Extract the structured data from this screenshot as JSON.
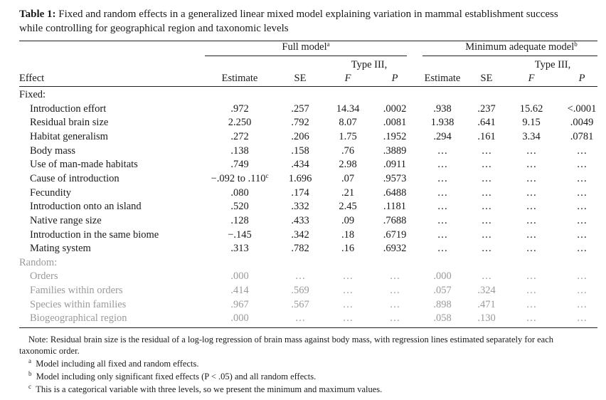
{
  "title": {
    "label": "Table 1:",
    "lines": [
      "Fixed and random effects in a generalized linear mixed model explaining variation in mammal establishment success",
      "while controlling for geographical region and taxonomic levels"
    ]
  },
  "table": {
    "groups": [
      {
        "title": "Full model",
        "note": "a"
      },
      {
        "title": "Minimum adequate model",
        "note": "b"
      }
    ],
    "columns": [
      "Effect",
      "Estimate",
      "SE",
      {
        "top": "Type III,",
        "name": "F"
      },
      "P",
      "Estimate",
      "SE",
      {
        "top": "Type III,",
        "name": "F"
      },
      "P"
    ],
    "sections": [
      {
        "label": "Fixed:",
        "rows": [
          [
            "Introduction effort",
            ".972",
            ".257",
            "14.34",
            ".0002",
            ".938",
            ".237",
            "15.62",
            "<.0001"
          ],
          [
            "Residual brain size",
            "2.250",
            ".792",
            "8.07",
            ".0081",
            "1.938",
            ".641",
            "9.15",
            ".0049"
          ],
          [
            "Habitat generalism",
            ".272",
            ".206",
            "1.75",
            ".1952",
            ".294",
            ".161",
            "3.34",
            ".0781"
          ],
          [
            "Body mass",
            ".138",
            ".158",
            ".76",
            ".3889",
            "…",
            "…",
            "…",
            "…"
          ],
          [
            "Use of man-made habitats",
            ".749",
            ".434",
            "2.98",
            ".0911",
            "…",
            "…",
            "…",
            "…"
          ],
          [
            "Cause of introduction",
            {
              "text": "−.092 to .110",
              "note": "c"
            },
            "1.696",
            ".07",
            ".9573",
            "…",
            "…",
            "…",
            "…"
          ],
          [
            "Fecundity",
            ".080",
            ".174",
            ".21",
            ".6488",
            "…",
            "…",
            "…",
            "…"
          ],
          [
            "Introduction onto an island",
            ".520",
            ".332",
            "2.45",
            ".1181",
            "…",
            "…",
            "…",
            "…"
          ],
          [
            "Native range size",
            ".128",
            ".433",
            ".09",
            ".7688",
            "…",
            "…",
            "…",
            "…"
          ],
          [
            "Introduction in the same biome",
            "−.145",
            ".342",
            ".18",
            ".6719",
            "…",
            "…",
            "…",
            "…"
          ],
          [
            "Mating system",
            ".313",
            ".782",
            ".16",
            ".6932",
            "…",
            "…",
            "…",
            "…"
          ]
        ]
      },
      {
        "label": "Random:",
        "rows": [
          [
            "Orders",
            ".000",
            "…",
            "…",
            "…",
            ".000",
            "…",
            "…",
            "…"
          ],
          [
            "Families within orders",
            ".414",
            ".569",
            "…",
            "…",
            ".057",
            ".324",
            "…",
            "…"
          ],
          [
            "Species within families",
            ".967",
            ".567",
            "…",
            "…",
            ".898",
            ".471",
            "…",
            "…"
          ],
          [
            "Biogeographical region",
            ".000",
            "…",
            "…",
            "…",
            ".058",
            ".130",
            "…",
            "…"
          ]
        ]
      }
    ]
  },
  "notes": {
    "lines": [
      "Note: Residual brain size is the residual of a log-log regression of brain mass against body mass, with regression lines estimated separately for each",
      "taxonomic order."
    ],
    "footnotes": [
      {
        "mark": "a",
        "text": "Model including all fixed and random effects."
      },
      {
        "mark": "b",
        "text": "Model including only significant fixed effects (P < .05) and all random effects."
      },
      {
        "mark": "c",
        "text": "This is a categorical variable with three levels, so we present the minimum and maximum values."
      }
    ]
  }
}
